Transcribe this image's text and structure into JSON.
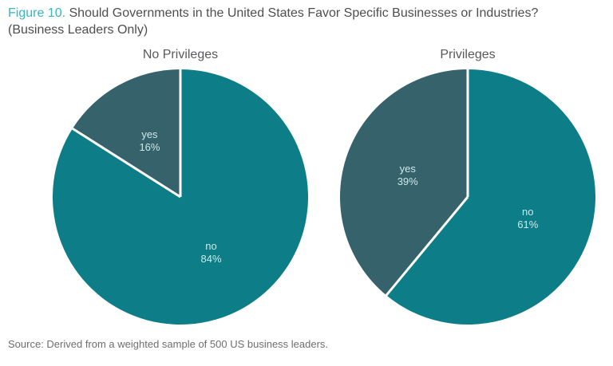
{
  "header": {
    "figure_label": "Figure 10.",
    "title": "Should Governments in the United States Favor Specific Businesses or Industries?",
    "subtitle": "(Business Leaders Only)"
  },
  "source": "Source: Derived from a weighted sample of 500 US business leaders.",
  "colors": {
    "figure_label_accent": "#35b5c5",
    "title_text": "#4d4e50",
    "chart_title_text": "#58595b",
    "slice_label_text": "#cee8eb",
    "slice_divider": "#ffffff",
    "source_text": "#6d6e71",
    "no_slice": "#0d7e88",
    "yes_slice": "#35626b"
  },
  "chart_data": [
    {
      "type": "pie",
      "title": "No Privileges",
      "start_angle_deg": 0,
      "direction": "clockwise",
      "value_suffix": "%",
      "legend_position": "none",
      "slices": [
        {
          "label": "no",
          "value": 84,
          "color": "#0d7e88"
        },
        {
          "label": "yes",
          "value": 16,
          "color": "#35626b"
        }
      ]
    },
    {
      "type": "pie",
      "title": "Privileges",
      "start_angle_deg": 0,
      "direction": "clockwise",
      "value_suffix": "%",
      "legend_position": "none",
      "slices": [
        {
          "label": "no",
          "value": 61,
          "color": "#0d7e88"
        },
        {
          "label": "yes",
          "value": 39,
          "color": "#35626b"
        }
      ]
    }
  ]
}
